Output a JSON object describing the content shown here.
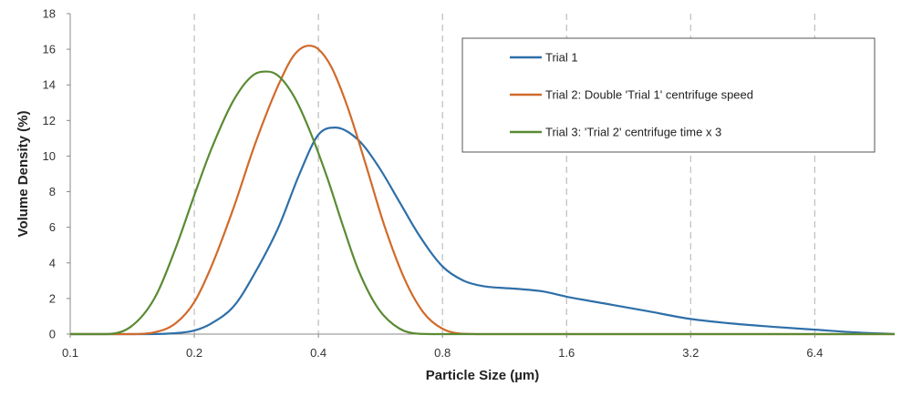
{
  "chart_data": {
    "type": "line",
    "xlabel": "Particle Size (µm)",
    "ylabel": "Volume Density (%)",
    "x_scale": "log2",
    "xlim": [
      0.1,
      10
    ],
    "ylim": [
      0,
      18
    ],
    "x_ticks": [
      0.1,
      0.2,
      0.4,
      0.8,
      1.6,
      3.2,
      6.4
    ],
    "x_tick_labels": [
      "0.1",
      "0.2",
      "0.4",
      "0.8",
      "1.6",
      "3.2",
      "6.4"
    ],
    "y_ticks": [
      0,
      2,
      4,
      6,
      8,
      10,
      12,
      14,
      16,
      18
    ],
    "y_tick_labels": [
      "0",
      "2",
      "4",
      "6",
      "8",
      "10",
      "12",
      "14",
      "16",
      "18"
    ],
    "grid": "vertical dashed",
    "legend_position": "top-right",
    "series": [
      {
        "name": "Trial 1",
        "color": "#2e6fa8",
        "x": [
          0.1,
          0.15,
          0.18,
          0.2,
          0.22,
          0.25,
          0.28,
          0.32,
          0.36,
          0.4,
          0.44,
          0.5,
          0.56,
          0.63,
          0.7,
          0.8,
          0.9,
          1.0,
          1.2,
          1.4,
          1.6,
          2.0,
          2.5,
          3.2,
          4.0,
          5.0,
          6.4,
          8.0,
          10.0
        ],
        "y": [
          0,
          0,
          0.05,
          0.2,
          0.6,
          1.6,
          3.4,
          6.0,
          9.0,
          11.2,
          11.6,
          10.9,
          9.4,
          7.4,
          5.6,
          3.8,
          3.0,
          2.7,
          2.55,
          2.4,
          2.1,
          1.7,
          1.3,
          0.85,
          0.6,
          0.42,
          0.25,
          0.1,
          0
        ]
      },
      {
        "name": "Trial 2: Double 'Trial 1' centrifuge speed",
        "color": "#d06a2a",
        "x": [
          0.1,
          0.14,
          0.16,
          0.18,
          0.2,
          0.22,
          0.25,
          0.28,
          0.32,
          0.35,
          0.38,
          0.4,
          0.43,
          0.47,
          0.52,
          0.58,
          0.65,
          0.72,
          0.8,
          0.9,
          1.0,
          10.0
        ],
        "y": [
          0,
          0,
          0.1,
          0.6,
          1.8,
          3.8,
          7.2,
          10.6,
          14.0,
          15.7,
          16.2,
          16.0,
          15.0,
          12.8,
          9.6,
          6.0,
          3.0,
          1.2,
          0.3,
          0.02,
          0,
          0
        ]
      },
      {
        "name": "Trial 3: 'Trial 2' centrifuge time x 3",
        "color": "#5a8a32",
        "x": [
          0.1,
          0.12,
          0.14,
          0.16,
          0.18,
          0.2,
          0.22,
          0.25,
          0.28,
          0.3,
          0.32,
          0.35,
          0.38,
          0.42,
          0.46,
          0.5,
          0.56,
          0.63,
          0.7,
          0.8,
          10.0
        ],
        "y": [
          0,
          0,
          0.4,
          2.0,
          4.8,
          7.8,
          10.4,
          13.2,
          14.6,
          14.75,
          14.5,
          13.3,
          11.5,
          8.8,
          6.0,
          3.6,
          1.4,
          0.3,
          0.02,
          0,
          0
        ]
      }
    ]
  }
}
